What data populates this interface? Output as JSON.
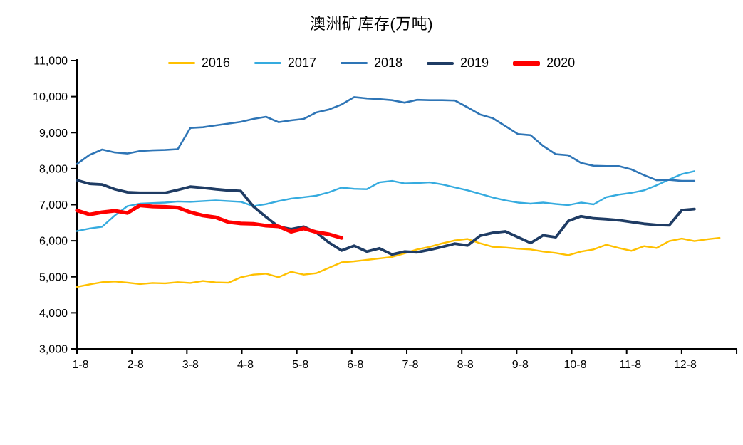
{
  "title": "澳洲矿库存(万吨)",
  "chart_data": {
    "type": "line",
    "title": "澳洲矿库存(万吨)",
    "unit": "万吨",
    "grid": false,
    "legend_position": "top",
    "y_axis": {
      "min": 3000,
      "max": 11000,
      "step": 1000,
      "tick_labels": [
        "3,000",
        "4,000",
        "5,000",
        "6,000",
        "7,000",
        "8,000",
        "9,000",
        "10,000",
        "11,000"
      ]
    },
    "x_axis": {
      "tick_labels": [
        "1-8",
        "2-8",
        "3-8",
        "4-8",
        "5-8",
        "6-8",
        "7-8",
        "8-8",
        "9-8",
        "10-8",
        "11-8",
        "12-8"
      ],
      "points_per_month": 4.36,
      "sampling": "weekly"
    },
    "series": [
      {
        "name": "2016",
        "color": "#FFC000",
        "width": 2.4,
        "values": [
          4720,
          4790,
          4850,
          4870,
          4840,
          4800,
          4830,
          4820,
          4850,
          4830,
          4885,
          4845,
          4835,
          4985,
          5060,
          5085,
          4990,
          5140,
          5060,
          5100,
          5250,
          5400,
          5430,
          5470,
          5510,
          5550,
          5650,
          5760,
          5830,
          5930,
          6010,
          6050,
          5930,
          5830,
          5810,
          5780,
          5760,
          5700,
          5660,
          5600,
          5700,
          5760,
          5890,
          5800,
          5720,
          5850,
          5800,
          5990,
          6060,
          5990,
          6040,
          6080
        ]
      },
      {
        "name": "2017",
        "color": "#35ABDF",
        "width": 2.4,
        "values": [
          6270,
          6340,
          6390,
          6700,
          6960,
          7030,
          7045,
          7060,
          7090,
          7080,
          7100,
          7120,
          7100,
          7080,
          6960,
          7015,
          7100,
          7170,
          7210,
          7250,
          7345,
          7475,
          7440,
          7430,
          7620,
          7660,
          7590,
          7600,
          7620,
          7560,
          7480,
          7400,
          7300,
          7200,
          7120,
          7060,
          7030,
          7060,
          7020,
          6990,
          7060,
          7010,
          7210,
          7280,
          7330,
          7400,
          7540,
          7700,
          7850,
          7930
        ]
      },
      {
        "name": "2018",
        "color": "#2E75B6",
        "width": 2.6,
        "values": [
          8130,
          8380,
          8530,
          8450,
          8420,
          8490,
          8510,
          8520,
          8540,
          9130,
          9150,
          9200,
          9250,
          9300,
          9380,
          9440,
          9290,
          9340,
          9380,
          9560,
          9640,
          9780,
          9985,
          9950,
          9930,
          9900,
          9830,
          9910,
          9900,
          9900,
          9890,
          9700,
          9500,
          9400,
          9180,
          8960,
          8930,
          8630,
          8400,
          8370,
          8160,
          8080,
          8070,
          8070,
          7980,
          7820,
          7680,
          7690,
          7660,
          7660
        ]
      },
      {
        "name": "2019",
        "color": "#1F3C64",
        "width": 3.8,
        "values": [
          7680,
          7580,
          7560,
          7430,
          7345,
          7330,
          7330,
          7330,
          7410,
          7500,
          7470,
          7430,
          7400,
          7380,
          6950,
          6660,
          6390,
          6320,
          6390,
          6230,
          5950,
          5730,
          5860,
          5700,
          5790,
          5620,
          5700,
          5680,
          5750,
          5830,
          5920,
          5870,
          6140,
          6220,
          6260,
          6100,
          5940,
          6150,
          6100,
          6550,
          6680,
          6620,
          6600,
          6570,
          6520,
          6470,
          6440,
          6430,
          6850,
          6880
        ]
      },
      {
        "name": "2020",
        "color": "#FF0000",
        "width": 5.2,
        "values": [
          6840,
          6730,
          6790,
          6830,
          6770,
          6980,
          6950,
          6940,
          6920,
          6790,
          6700,
          6650,
          6520,
          6480,
          6470,
          6420,
          6400,
          6250,
          6340,
          6240,
          6180,
          6080
        ]
      }
    ]
  }
}
